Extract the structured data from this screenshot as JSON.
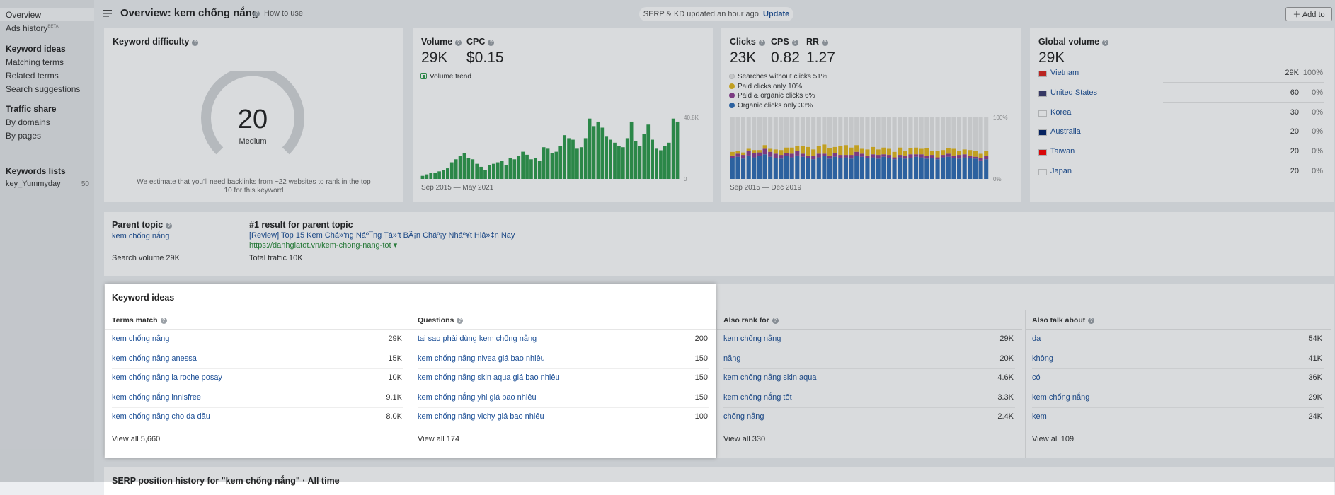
{
  "sidebar": {
    "overview": "Overview",
    "ads_history": "Ads history",
    "beta": "BETA",
    "groups": [
      {
        "title": "Keyword ideas",
        "links": [
          "Matching terms",
          "Related terms",
          "Search suggestions"
        ]
      },
      {
        "title": "Traffic share",
        "links": [
          "By domains",
          "By pages"
        ]
      }
    ],
    "lists": {
      "title": "Keywords lists",
      "items": [
        {
          "name": "key_Yummyday",
          "count": 50
        }
      ]
    }
  },
  "topbar": {
    "title": "Overview: kem chống nắng",
    "how_to_use": "How to use",
    "notice": "SERP & KD updated an hour ago.",
    "update": "Update",
    "add_to": "Add to"
  },
  "keyword_difficulty": {
    "title": "Keyword difficulty",
    "score": 20,
    "level": "Medium",
    "note": "We estimate that you'll need backlinks from ~22 websites to rank in the top 10 for this keyword"
  },
  "volume_card": {
    "metrics": [
      {
        "label": "Volume",
        "value": "29K"
      },
      {
        "label": "CPC",
        "value": "$0.15"
      }
    ]
  },
  "clicks_card": {
    "metrics": [
      {
        "label": "Clicks",
        "value": "23K"
      },
      {
        "label": "CPS",
        "value": "0.82"
      },
      {
        "label": "RR",
        "value": "1.27"
      }
    ]
  },
  "chart_data": [
    {
      "type": "bar",
      "series": [
        {
          "name": "Volume trend",
          "color": "#2e9a4c",
          "values": [
            2,
            3,
            4,
            4,
            5,
            6,
            7,
            11,
            13,
            15,
            17,
            14,
            13,
            10,
            8,
            6,
            9,
            10,
            11,
            12,
            9,
            14,
            13,
            15,
            18,
            16,
            13,
            14,
            12,
            21,
            20,
            17,
            18,
            22,
            29,
            27,
            26,
            20,
            21,
            27,
            40,
            35,
            38,
            34,
            28,
            26,
            24,
            22,
            21,
            27,
            38,
            25,
            22,
            30,
            36,
            26,
            20,
            19,
            22,
            24,
            40,
            38
          ]
        }
      ],
      "ylim": [
        0,
        40.8
      ],
      "yticks": [
        {
          "value": 40.8,
          "label": "40.8K"
        },
        0
      ],
      "grid": false,
      "date_range": "Sep 2015 — May 2021"
    },
    {
      "type": "stacked_bar",
      "series": [
        {
          "name": "Searches without clicks 51%",
          "color": "#e6e6e6",
          "values": [
            56,
            54,
            57,
            51,
            53,
            53,
            45,
            51,
            52,
            53,
            49,
            49,
            47,
            47,
            48,
            52,
            46,
            44,
            50,
            48,
            47,
            45,
            49,
            45,
            51,
            52,
            48,
            52,
            49,
            51,
            56,
            49,
            54,
            50,
            49,
            51,
            50,
            54,
            55,
            53,
            50,
            51,
            55,
            52,
            53,
            54,
            59,
            55
          ]
        },
        {
          "name": "Paid clicks only 10%",
          "color": "#e2b71e",
          "values": [
            6,
            5,
            4,
            3,
            5,
            4,
            6,
            5,
            7,
            8,
            9,
            10,
            8,
            12,
            14,
            11,
            13,
            15,
            12,
            10,
            14,
            16,
            12,
            11,
            8,
            10,
            12,
            9,
            11,
            10,
            9,
            12,
            8,
            10,
            11,
            9,
            13,
            7,
            10,
            8,
            9,
            11,
            6,
            8,
            9,
            10,
            7,
            8
          ]
        },
        {
          "name": "Paid & organic clicks 6%",
          "color": "#8e3f91",
          "values": [
            4,
            5,
            6,
            8,
            7,
            6,
            9,
            8,
            7,
            6,
            5,
            6,
            7,
            5,
            4,
            5,
            6,
            4,
            5,
            6,
            5,
            4,
            6,
            7,
            5,
            4,
            5,
            6,
            4,
            5,
            3,
            4,
            5,
            6,
            4,
            5,
            4,
            5,
            3,
            4,
            5,
            4,
            6,
            5,
            4,
            3,
            4,
            5
          ]
        },
        {
          "name": "Organic clicks only 33%",
          "color": "#2f6db5",
          "values": [
            34,
            36,
            33,
            38,
            35,
            37,
            40,
            36,
            34,
            33,
            37,
            35,
            38,
            36,
            34,
            32,
            35,
            37,
            33,
            36,
            34,
            35,
            33,
            37,
            36,
            34,
            35,
            33,
            36,
            34,
            32,
            35,
            33,
            34,
            36,
            35,
            33,
            34,
            32,
            35,
            36,
            34,
            33,
            35,
            34,
            33,
            30,
            32
          ]
        }
      ],
      "ylim": [
        0,
        100
      ],
      "yticks": [
        {
          "value": 100,
          "label": "100%"
        },
        {
          "value": 0,
          "label": "0%"
        }
      ],
      "grid": false,
      "date_range": "Sep 2015 — Dec 2019"
    }
  ],
  "global_volume": {
    "title": "Global volume",
    "total": "29K",
    "countries": [
      {
        "name": "Vietnam",
        "volume": "29K",
        "share": "100%"
      },
      {
        "name": "United States",
        "volume": "60",
        "share": "0%"
      },
      {
        "name": "Korea",
        "volume": "30",
        "share": "0%"
      },
      {
        "name": "Australia",
        "volume": "20",
        "share": "0%"
      },
      {
        "name": "Taiwan",
        "volume": "20",
        "share": "0%"
      },
      {
        "name": "Japan",
        "volume": "20",
        "share": "0%"
      }
    ]
  },
  "parent_topic": {
    "title": "Parent topic",
    "keyword": "kem chống nắng",
    "search_volume": "Search volume 29K",
    "result_title": "#1 result for parent topic",
    "result_link": "[Review] Top 15 Kem Chá»‘ng Náº¯ng Tá»‘t BÃ¡n Cháº¡y Nháº¥t Hiá»‡n Nay",
    "result_url": "https://danhgiatot.vn/kem-chong-nang-tot ▾",
    "total_traffic": "Total traffic 10K"
  },
  "keyword_ideas": {
    "title": "Keyword ideas",
    "columns": [
      {
        "title": "Terms match",
        "view_all": "View all 5,660",
        "rows": [
          {
            "keyword": "kem chống nắng",
            "volume": "29K"
          },
          {
            "keyword": "kem chống nắng anessa",
            "volume": "15K"
          },
          {
            "keyword": "kem chống nắng la roche posay",
            "volume": "10K"
          },
          {
            "keyword": "kem chống nắng innisfree",
            "volume": "9.1K"
          },
          {
            "keyword": "kem chống nắng cho da dầu",
            "volume": "8.0K"
          }
        ]
      },
      {
        "title": "Questions",
        "view_all": "View all 174",
        "rows": [
          {
            "keyword": "tai sao phải dùng kem chống nắng",
            "volume": "200"
          },
          {
            "keyword": "kem chống nắng nivea giá bao nhiêu",
            "volume": "150"
          },
          {
            "keyword": "kem chống nắng skin aqua giá bao nhiêu",
            "volume": "150"
          },
          {
            "keyword": "kem chống nắng yhl giá bao nhiêu",
            "volume": "150"
          },
          {
            "keyword": "kem chống nắng vichy giá bao nhiêu",
            "volume": "100"
          }
        ]
      },
      {
        "title": "Also rank for",
        "view_all": "View all 330",
        "rows": [
          {
            "keyword": "kem chống nắng",
            "volume": "29K"
          },
          {
            "keyword": "nắng",
            "volume": "20K"
          },
          {
            "keyword": "kem chống nắng skin aqua",
            "volume": "4.6K"
          },
          {
            "keyword": "kem chống nắng tốt",
            "volume": "3.3K"
          },
          {
            "keyword": "chống nắng",
            "volume": "2.4K"
          }
        ]
      },
      {
        "title": "Also talk about",
        "view_all": "View all 109",
        "rows": [
          {
            "keyword": "da",
            "volume": "54K"
          },
          {
            "keyword": "không",
            "volume": "41K"
          },
          {
            "keyword": "có",
            "volume": "36K"
          },
          {
            "keyword": "kem chống nắng",
            "volume": "29K"
          },
          {
            "keyword": "kem",
            "volume": "24K"
          }
        ]
      }
    ]
  },
  "serp_history": {
    "title": "SERP position history for \"kem chống nắng\"",
    "period": "All time"
  }
}
